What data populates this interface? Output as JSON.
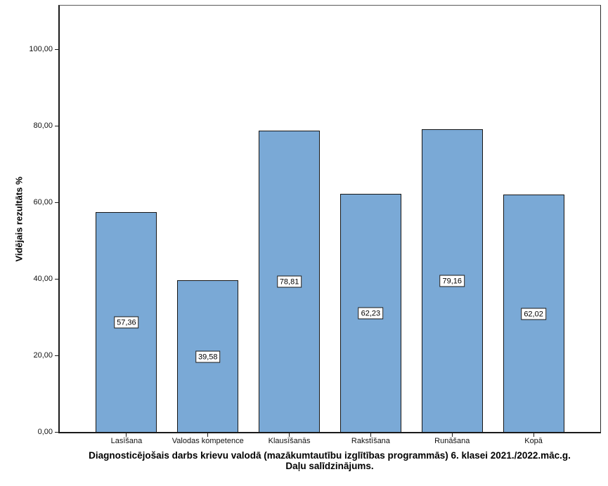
{
  "figure": {
    "y_axis_title": "Vidējais rezultāts %",
    "title_line1": "Diagnosticējošais darbs krievu valodā (mazākumtautību izglītības programmās) 6. klasei 2021./2022.māc.g.",
    "title_line2": "Daļu salīdzinājums."
  },
  "chart_data": {
    "type": "bar",
    "title": "Diagnosticējošais darbs krievu valodā (mazākumtautību izglītības programmās) 6. klasei 2021./2022.māc.g. Daļu salīdzinājums.",
    "xlabel": "",
    "ylabel": "Vidējais rezultāts %",
    "categories": [
      "Lasīšana",
      "Valodas kompetence",
      "Klausīšanās",
      "Rakstīšana",
      "Runāšana",
      "Kopā"
    ],
    "values": [
      57.36,
      39.58,
      78.81,
      62.23,
      79.16,
      62.02
    ],
    "value_labels": [
      "57,36",
      "39,58",
      "78,81",
      "62,23",
      "79,16",
      "62,02"
    ],
    "yticks": [
      0,
      20,
      40,
      60,
      80,
      100
    ],
    "ytick_labels": [
      "0,00",
      "20,00",
      "40,00",
      "60,00",
      "80,00",
      "100,00"
    ],
    "ylim": [
      0,
      111.4
    ],
    "grid": false,
    "legend": false,
    "bar_color": "#7aa9d6",
    "bar_border_color": "#161616"
  }
}
